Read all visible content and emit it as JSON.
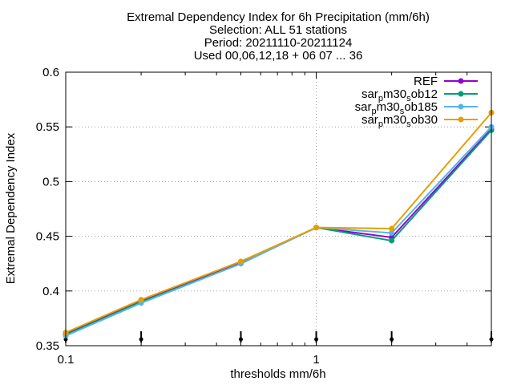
{
  "chart_data": {
    "type": "line",
    "title_lines": [
      "Extremal Dependency Index  for 6h Precipitation (mm/6h)",
      "Selection: ALL     51 stations",
      "Period: 20211110-20211124",
      "Used 00,06,12,18 + 06 07 ... 36"
    ],
    "xlabel": "thresholds mm/6h",
    "ylabel": "Extremal Dependency Index",
    "x_scale": "log",
    "xlim": [
      0.1,
      5
    ],
    "ylim": [
      0.35,
      0.6
    ],
    "x_ticks": [
      {
        "value": 0.1,
        "label": "0.1"
      },
      {
        "value": 1,
        "label": "1"
      }
    ],
    "y_ticks": [
      {
        "value": 0.35,
        "label": "0.35"
      },
      {
        "value": 0.4,
        "label": "0.4"
      },
      {
        "value": 0.45,
        "label": "0.45"
      },
      {
        "value": 0.5,
        "label": "0.5"
      },
      {
        "value": 0.55,
        "label": "0.55"
      },
      {
        "value": 0.6,
        "label": "0.6"
      }
    ],
    "grid": true,
    "legend_position": "top-right",
    "x": [
      0.1,
      0.2,
      0.5,
      1,
      2,
      5
    ],
    "series": [
      {
        "name": "REF",
        "legend_base": "REF",
        "legend_sub": [],
        "color": "#9400d3",
        "values": [
          0.361,
          0.391,
          0.426,
          0.458,
          0.449,
          0.548
        ]
      },
      {
        "name": "sar_pm30_sob12",
        "legend_base": "sar",
        "legend_sub": [
          [
            "p",
            "m30"
          ],
          [
            "s",
            "ob12"
          ]
        ],
        "color": "#009e73",
        "values": [
          0.36,
          0.39,
          0.425,
          0.458,
          0.446,
          0.547
        ]
      },
      {
        "name": "sar_pm30_sob185",
        "legend_base": "sar",
        "legend_sub": [
          [
            "p",
            "m30"
          ],
          [
            "s",
            "ob185"
          ]
        ],
        "color": "#56b4e9",
        "values": [
          0.359,
          0.389,
          0.425,
          0.458,
          0.453,
          0.55
        ]
      },
      {
        "name": "sar_pm30_sob30",
        "legend_base": "sar",
        "legend_sub": [
          [
            "p",
            "m30"
          ],
          [
            "s",
            "ob30"
          ]
        ],
        "color": "#e69f00",
        "values": [
          0.362,
          0.392,
          0.427,
          0.458,
          0.457,
          0.563
        ]
      }
    ],
    "threshold_markers": [
      0.1,
      0.2,
      0.5,
      1,
      2,
      5
    ]
  }
}
